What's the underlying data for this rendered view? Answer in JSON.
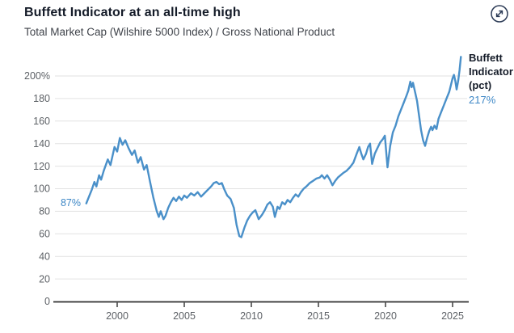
{
  "header": {
    "title": "Buffett Indicator at an all-time high",
    "subtitle": "Total Market Cap (Wilshire 5000 Index) / Gross National Product"
  },
  "controls": {
    "expand_icon": "expand-arrows-icon"
  },
  "colors": {
    "line": "#4a90c9",
    "accent_text": "#3d87c6",
    "title_text": "#141b28",
    "grid": "#e2e2e2",
    "axis": "#2f2f2f",
    "tick_text": "#5d6166"
  },
  "chart_data": {
    "type": "line",
    "title": "Buffett Indicator at an all-time high",
    "subtitle": "Total Market Cap (Wilshire 5000 Index) / Gross National Product",
    "xlabel": "",
    "ylabel": "",
    "xlim": [
      1997.4,
      2026.2
    ],
    "ylim": [
      0,
      220
    ],
    "grid": "horizontal",
    "legend_position": "right",
    "x_ticks": [
      2000,
      2005,
      2010,
      2015,
      2020,
      2025
    ],
    "x_tick_labels": [
      "2000",
      "2005",
      "2010",
      "2015",
      "2020",
      "2025"
    ],
    "y_ticks": [
      0,
      20,
      40,
      60,
      80,
      100,
      120,
      140,
      160,
      180,
      200
    ],
    "y_tick_labels": [
      "0",
      "20",
      "40",
      "60",
      "80",
      "100",
      "120",
      "140",
      "160",
      "180",
      "200%"
    ],
    "legend": {
      "label": "Buffett Indicator (pct)",
      "value": "217%"
    },
    "annotations": [
      {
        "text": "87%",
        "x": 1997.7,
        "y": 87,
        "placement": "left-of-line-start"
      },
      {
        "text": "217%",
        "x": 2025.62,
        "y": 217,
        "placement": "legend-value"
      }
    ],
    "series": [
      {
        "name": "Buffett Indicator (pct)",
        "color": "#4a90c9",
        "points": [
          [
            1997.7,
            87
          ],
          [
            1997.9,
            93
          ],
          [
            1998.1,
            99
          ],
          [
            1998.3,
            106
          ],
          [
            1998.45,
            102
          ],
          [
            1998.65,
            112
          ],
          [
            1998.8,
            108
          ],
          [
            1999.0,
            116
          ],
          [
            1999.15,
            121
          ],
          [
            1999.3,
            126
          ],
          [
            1999.5,
            121
          ],
          [
            1999.8,
            137
          ],
          [
            2000.0,
            133
          ],
          [
            2000.2,
            145
          ],
          [
            2000.4,
            139
          ],
          [
            2000.6,
            143
          ],
          [
            2000.85,
            136
          ],
          [
            2001.1,
            130
          ],
          [
            2001.3,
            134
          ],
          [
            2001.55,
            123
          ],
          [
            2001.75,
            128
          ],
          [
            2002.0,
            117
          ],
          [
            2002.2,
            121
          ],
          [
            2002.45,
            106
          ],
          [
            2002.7,
            92
          ],
          [
            2002.95,
            80
          ],
          [
            2003.1,
            75
          ],
          [
            2003.25,
            80
          ],
          [
            2003.45,
            73
          ],
          [
            2003.6,
            76
          ],
          [
            2003.8,
            83
          ],
          [
            2004.0,
            88
          ],
          [
            2004.2,
            92
          ],
          [
            2004.4,
            89
          ],
          [
            2004.6,
            93
          ],
          [
            2004.8,
            90
          ],
          [
            2005.0,
            94
          ],
          [
            2005.2,
            92
          ],
          [
            2005.5,
            96
          ],
          [
            2005.75,
            94
          ],
          [
            2006.0,
            97
          ],
          [
            2006.25,
            93
          ],
          [
            2006.5,
            96
          ],
          [
            2006.75,
            99
          ],
          [
            2007.0,
            102
          ],
          [
            2007.2,
            105
          ],
          [
            2007.4,
            106
          ],
          [
            2007.6,
            104
          ],
          [
            2007.8,
            105
          ],
          [
            2008.0,
            99
          ],
          [
            2008.2,
            94
          ],
          [
            2008.45,
            91
          ],
          [
            2008.7,
            83
          ],
          [
            2008.9,
            68
          ],
          [
            2009.1,
            58
          ],
          [
            2009.25,
            57
          ],
          [
            2009.5,
            66
          ],
          [
            2009.7,
            72
          ],
          [
            2009.9,
            76
          ],
          [
            2010.1,
            79
          ],
          [
            2010.3,
            81
          ],
          [
            2010.55,
            73
          ],
          [
            2010.8,
            77
          ],
          [
            2011.0,
            81
          ],
          [
            2011.2,
            86
          ],
          [
            2011.4,
            88
          ],
          [
            2011.6,
            84
          ],
          [
            2011.75,
            75
          ],
          [
            2011.95,
            84
          ],
          [
            2012.1,
            82
          ],
          [
            2012.3,
            88
          ],
          [
            2012.5,
            86
          ],
          [
            2012.7,
            90
          ],
          [
            2012.9,
            88
          ],
          [
            2013.1,
            92
          ],
          [
            2013.3,
            95
          ],
          [
            2013.5,
            93
          ],
          [
            2013.7,
            97
          ],
          [
            2013.9,
            100
          ],
          [
            2014.1,
            102
          ],
          [
            2014.35,
            105
          ],
          [
            2014.6,
            107
          ],
          [
            2014.85,
            109
          ],
          [
            2015.1,
            110
          ],
          [
            2015.25,
            112
          ],
          [
            2015.45,
            109
          ],
          [
            2015.65,
            112
          ],
          [
            2015.85,
            108
          ],
          [
            2016.05,
            103
          ],
          [
            2016.25,
            107
          ],
          [
            2016.45,
            110
          ],
          [
            2016.65,
            112
          ],
          [
            2016.85,
            114
          ],
          [
            2017.1,
            116
          ],
          [
            2017.35,
            119
          ],
          [
            2017.6,
            123
          ],
          [
            2017.85,
            131
          ],
          [
            2018.05,
            137
          ],
          [
            2018.2,
            131
          ],
          [
            2018.35,
            126
          ],
          [
            2018.55,
            131
          ],
          [
            2018.7,
            137
          ],
          [
            2018.85,
            140
          ],
          [
            2019.0,
            122
          ],
          [
            2019.2,
            131
          ],
          [
            2019.4,
            136
          ],
          [
            2019.6,
            141
          ],
          [
            2019.8,
            144
          ],
          [
            2019.95,
            147
          ],
          [
            2020.15,
            119
          ],
          [
            2020.35,
            138
          ],
          [
            2020.55,
            150
          ],
          [
            2020.75,
            156
          ],
          [
            2020.95,
            164
          ],
          [
            2021.15,
            170
          ],
          [
            2021.35,
            176
          ],
          [
            2021.55,
            182
          ],
          [
            2021.7,
            187
          ],
          [
            2021.85,
            195
          ],
          [
            2021.95,
            190
          ],
          [
            2022.05,
            194
          ],
          [
            2022.2,
            186
          ],
          [
            2022.35,
            178
          ],
          [
            2022.5,
            165
          ],
          [
            2022.65,
            152
          ],
          [
            2022.8,
            143
          ],
          [
            2022.95,
            138
          ],
          [
            2023.1,
            145
          ],
          [
            2023.25,
            151
          ],
          [
            2023.4,
            155
          ],
          [
            2023.5,
            152
          ],
          [
            2023.65,
            156
          ],
          [
            2023.8,
            153
          ],
          [
            2023.95,
            162
          ],
          [
            2024.15,
            168
          ],
          [
            2024.35,
            174
          ],
          [
            2024.55,
            180
          ],
          [
            2024.75,
            186
          ],
          [
            2024.9,
            193
          ],
          [
            2025.0,
            198
          ],
          [
            2025.1,
            201
          ],
          [
            2025.2,
            196
          ],
          [
            2025.3,
            188
          ],
          [
            2025.42,
            196
          ],
          [
            2025.52,
            205
          ],
          [
            2025.62,
            217
          ]
        ]
      }
    ]
  }
}
